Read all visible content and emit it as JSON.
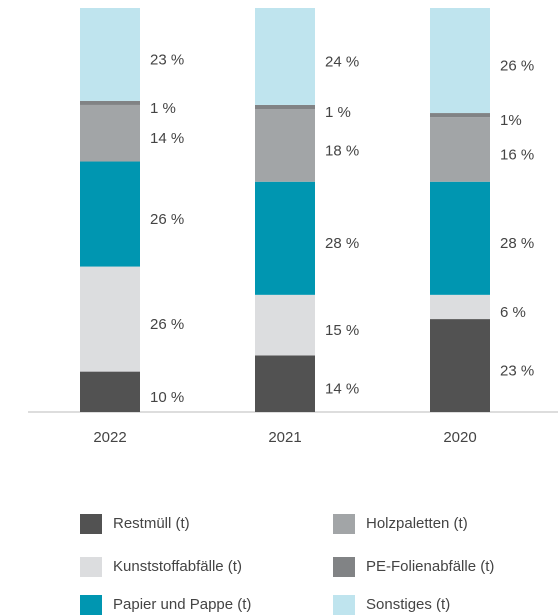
{
  "chart_data": {
    "type": "stacked-bar",
    "categories": [
      "2022",
      "2021",
      "2020"
    ],
    "series": [
      {
        "name": "Restmüll (t)",
        "color": "#525252",
        "values": [
          10,
          14,
          23
        ],
        "value_labels": [
          "10 %",
          "14 %",
          "23 %"
        ]
      },
      {
        "name": "Kunststoffabfälle (t)",
        "color": "#dcdddf",
        "values": [
          26,
          15,
          6
        ],
        "value_labels": [
          "26 %",
          "15 %",
          "6 %"
        ]
      },
      {
        "name": "Papier und Pappe (t)",
        "color": "#0096b1",
        "values": [
          26,
          28,
          28
        ],
        "value_labels": [
          "26 %",
          "28 %",
          "28 %"
        ]
      },
      {
        "name": "Holzpaletten (t)",
        "color": "#a2a5a7",
        "values": [
          14,
          18,
          16
        ],
        "value_labels": [
          "14 %",
          "18 %",
          "16 %"
        ]
      },
      {
        "name": "PE-Folienabfälle (t)",
        "color": "#818385",
        "values": [
          1,
          1,
          1
        ],
        "value_labels": [
          "1 %",
          "1 %",
          "1%"
        ]
      },
      {
        "name": "Sonstiges (t)",
        "color": "#bfe4ee",
        "values": [
          23,
          24,
          26
        ],
        "value_labels": [
          "23 %",
          "24 %",
          "26 %"
        ]
      }
    ]
  }
}
